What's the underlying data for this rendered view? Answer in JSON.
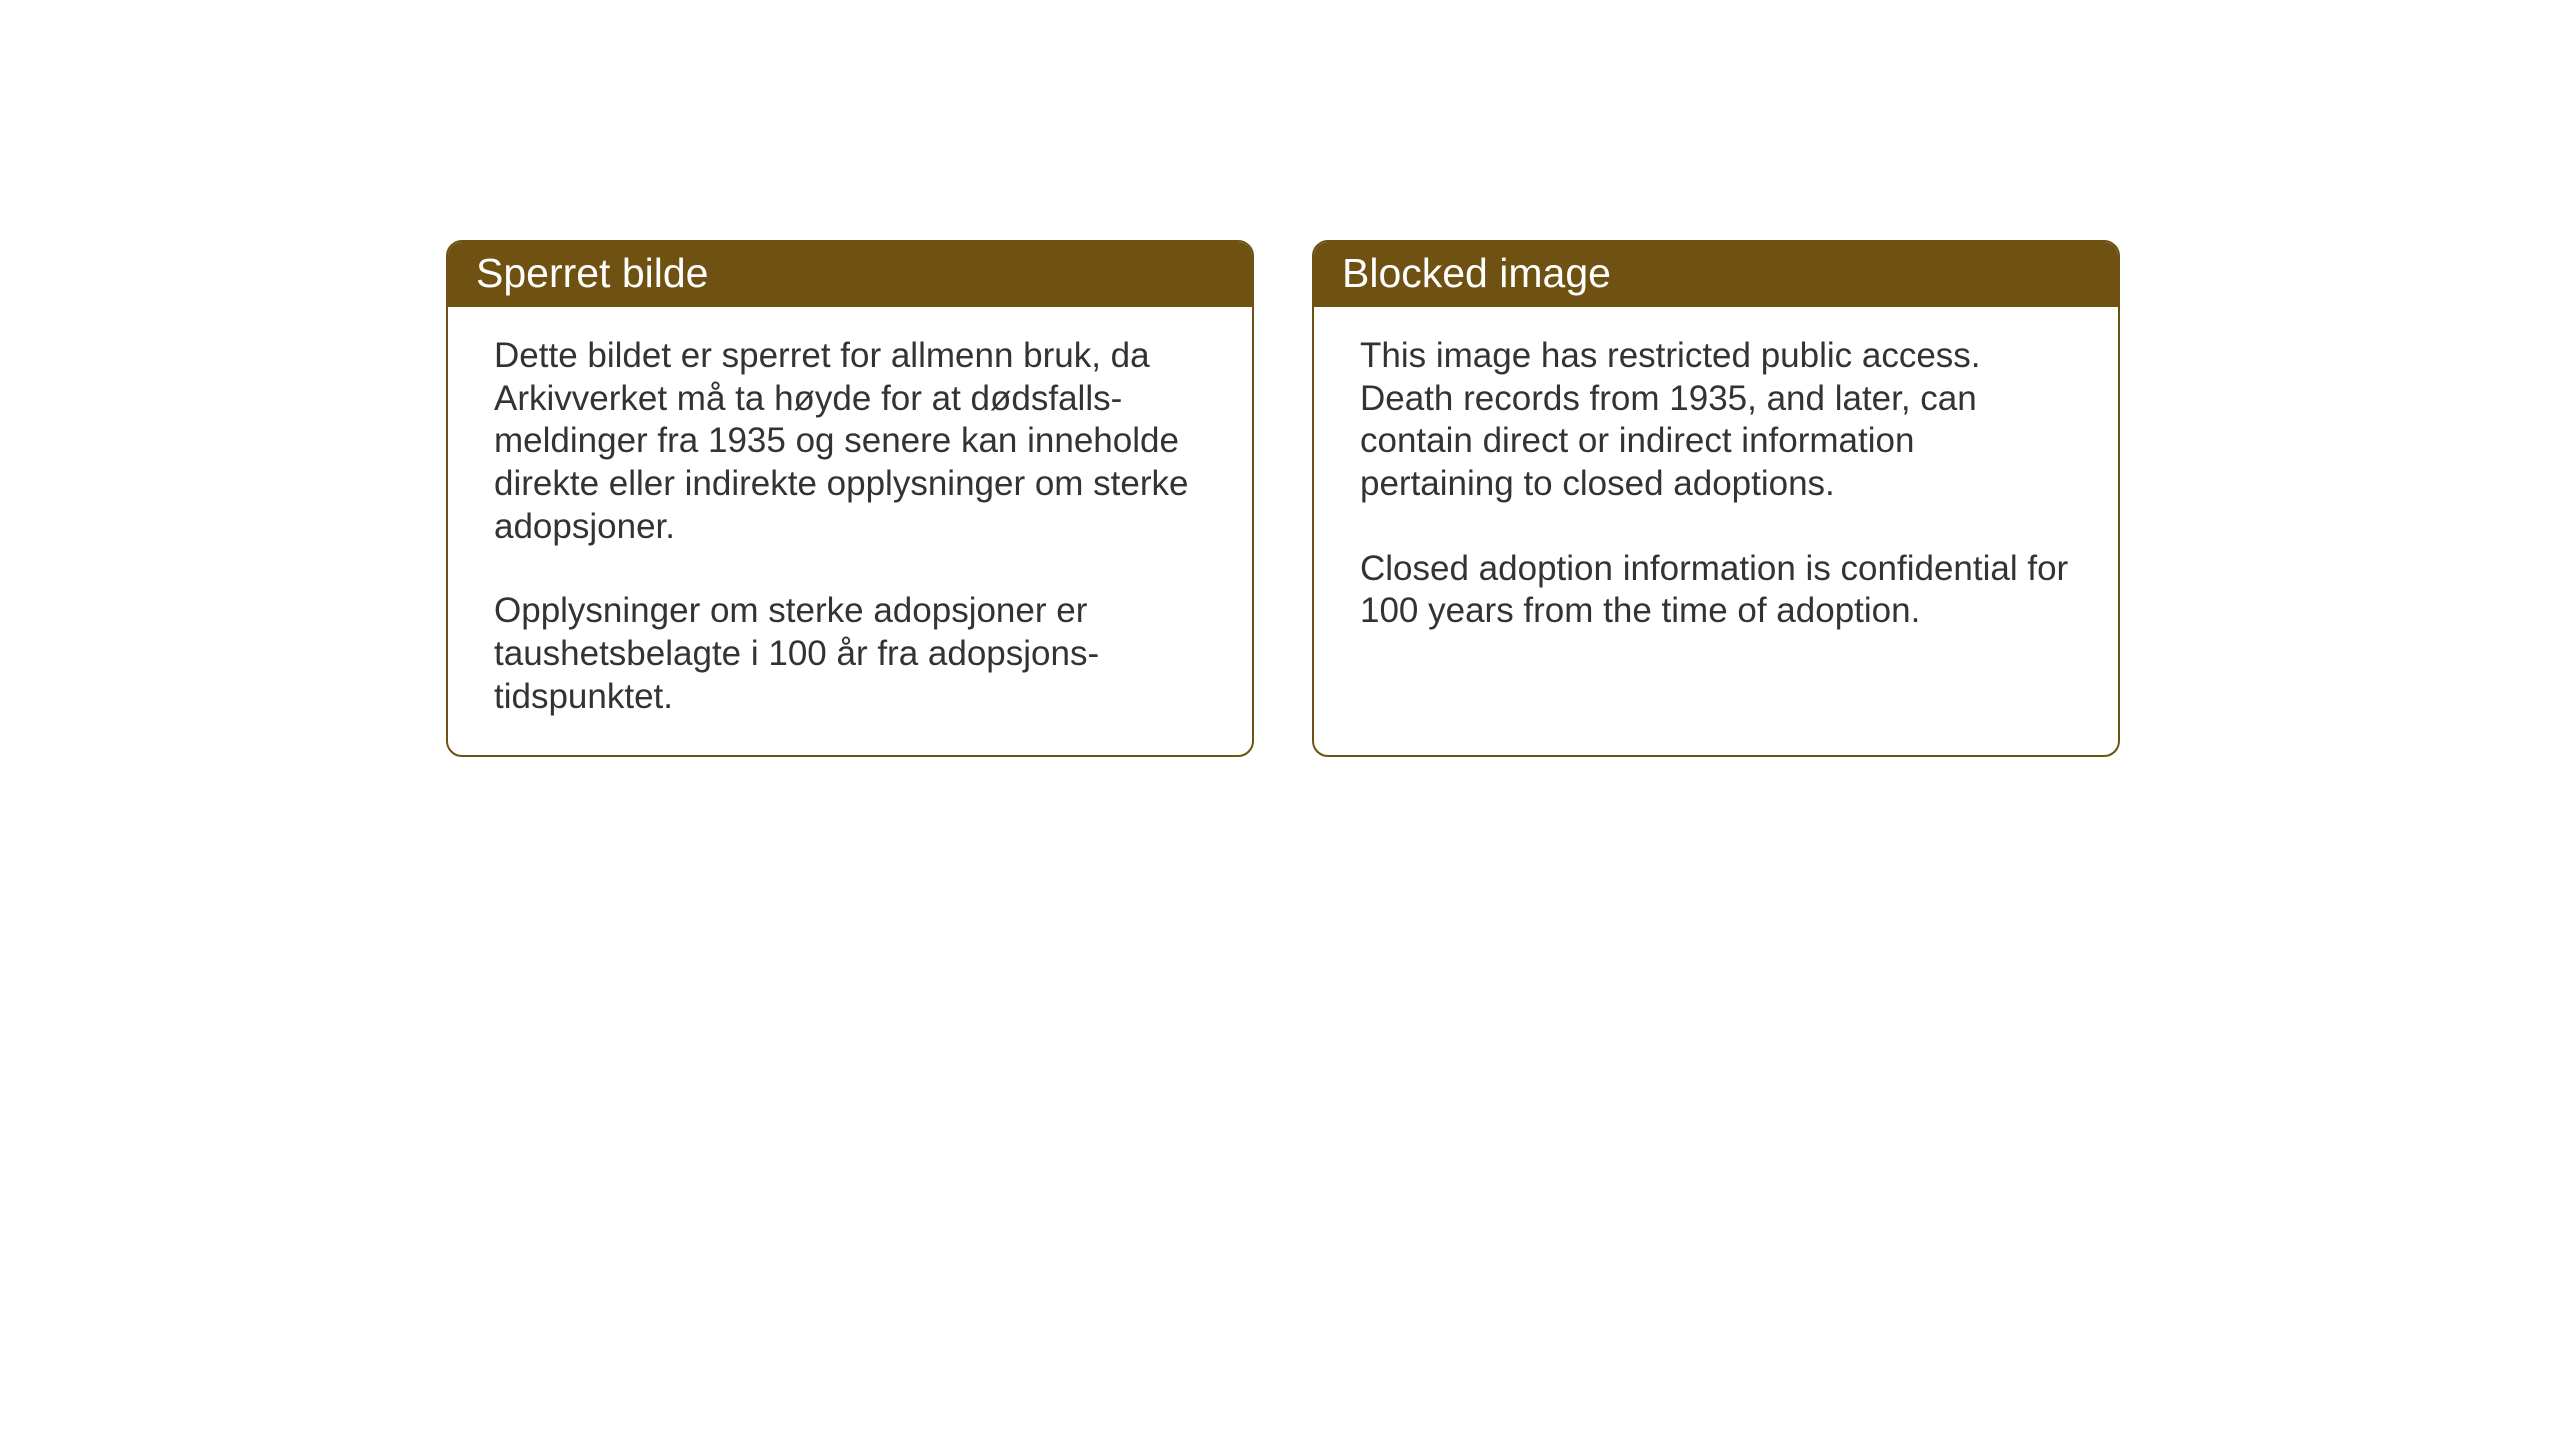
{
  "layout": {
    "background_color": "#ffffff",
    "card_border_color": "#6f5211",
    "card_border_width": 2,
    "card_border_radius": 16,
    "header_background": "#6f5211",
    "header_text_color": "#ffffff",
    "body_text_color": "#333333",
    "title_fontsize": 41,
    "body_fontsize": 35
  },
  "cards": {
    "norwegian": {
      "title": "Sperret bilde",
      "paragraph1": "Dette bildet er sperret for allmenn bruk, da Arkivverket må ta høyde for at dødsfalls-meldinger fra 1935 og senere kan inneholde direkte eller indirekte opplysninger om sterke adopsjoner.",
      "paragraph2": "Opplysninger om sterke adopsjoner er taushetsbelagte i 100 år fra adopsjons-tidspunktet."
    },
    "english": {
      "title": "Blocked image",
      "paragraph1": "This image has restricted public access. Death records from 1935, and later, can contain direct or indirect information pertaining to closed adoptions.",
      "paragraph2": "Closed adoption information is confidential for 100 years from the time of adoption."
    }
  }
}
